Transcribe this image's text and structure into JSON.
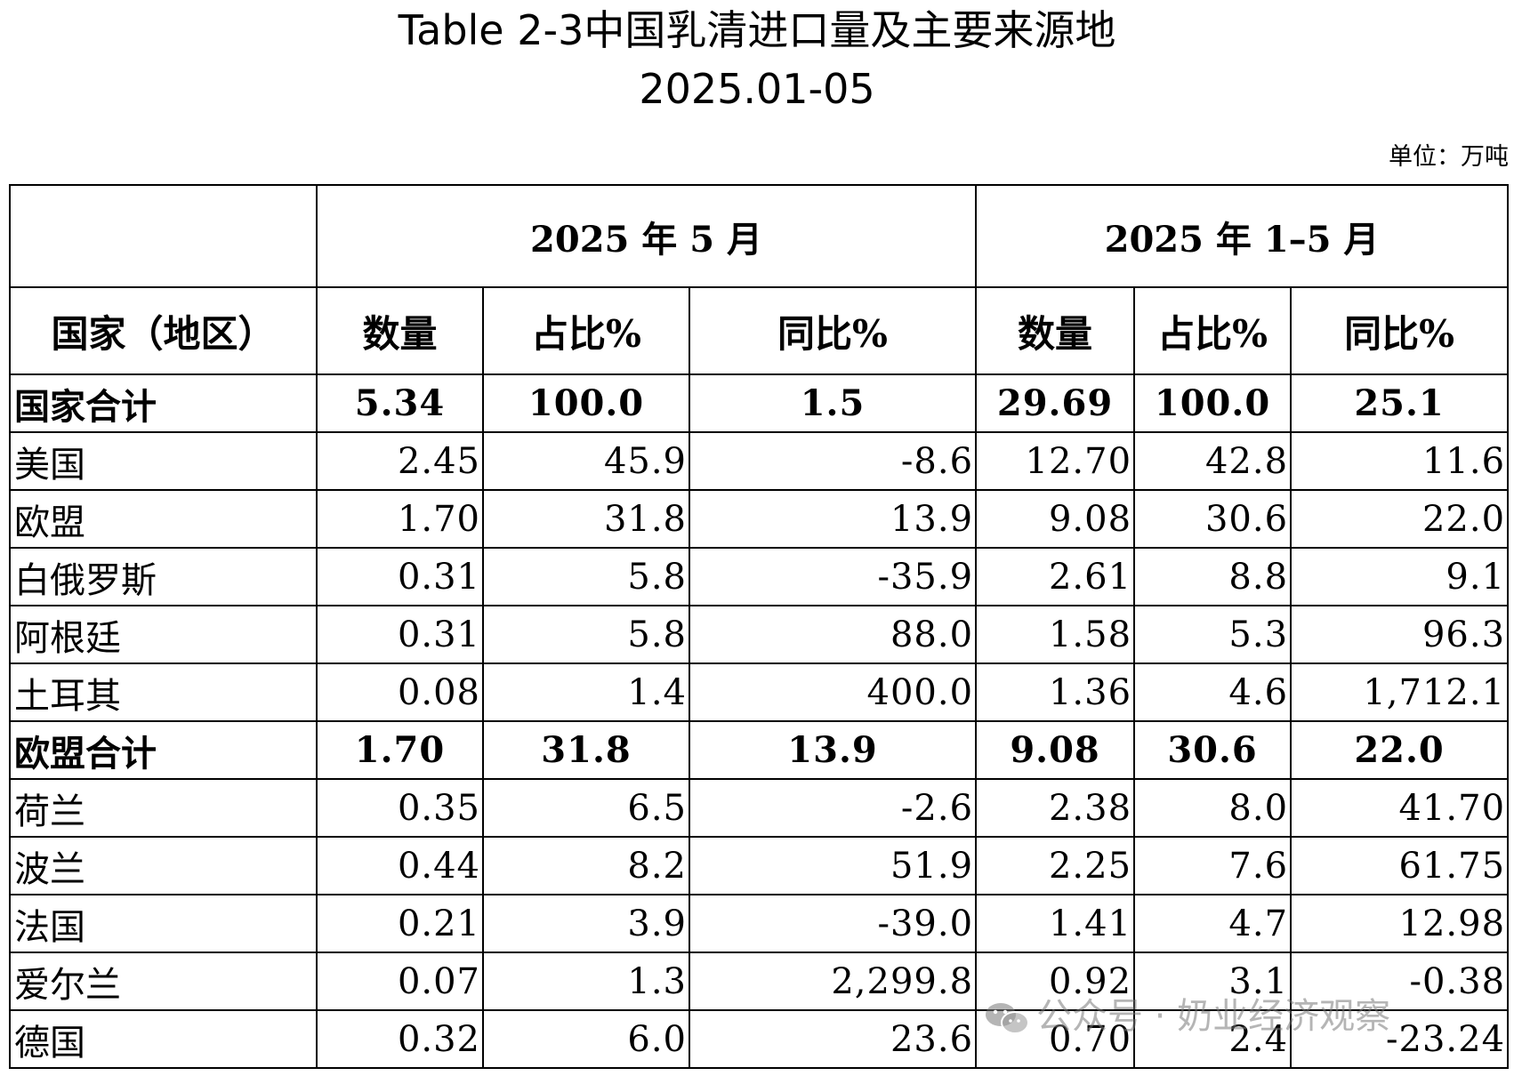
{
  "title": "Table 2-3中国乳清进口量及主要来源地",
  "subtitle": "2025.01-05",
  "unit": "单位：万吨",
  "header": {
    "group1": "2025 年 5 月",
    "group2": "2025 年 1–5 月",
    "country": "国家（地区）",
    "cols": [
      "数量",
      "占比%",
      "同比%",
      "数量",
      "占比%",
      "同比%"
    ]
  },
  "rows": [
    {
      "name": "国家合计",
      "bold": true,
      "v": [
        "5.34",
        "100.0",
        "1.5",
        "29.69",
        "100.0",
        "25.1"
      ]
    },
    {
      "name": "美国",
      "bold": false,
      "v": [
        "2.45",
        "45.9",
        "-8.6",
        "12.70",
        "42.8",
        "11.6"
      ]
    },
    {
      "name": "欧盟",
      "bold": false,
      "v": [
        "1.70",
        "31.8",
        "13.9",
        "9.08",
        "30.6",
        "22.0"
      ]
    },
    {
      "name": "白俄罗斯",
      "bold": false,
      "v": [
        "0.31",
        "5.8",
        "-35.9",
        "2.61",
        "8.8",
        "9.1"
      ]
    },
    {
      "name": "阿根廷",
      "bold": false,
      "v": [
        "0.31",
        "5.8",
        "88.0",
        "1.58",
        "5.3",
        "96.3"
      ]
    },
    {
      "name": "土耳其",
      "bold": false,
      "v": [
        "0.08",
        "1.4",
        "400.0",
        "1.36",
        "4.6",
        "1,712.1"
      ]
    },
    {
      "name": "欧盟合计",
      "bold": true,
      "v": [
        "1.70",
        "31.8",
        "13.9",
        "9.08",
        "30.6",
        "22.0"
      ]
    },
    {
      "name": "荷兰",
      "bold": false,
      "v": [
        "0.35",
        "6.5",
        "-2.6",
        "2.38",
        "8.0",
        "41.70"
      ]
    },
    {
      "name": "波兰",
      "bold": false,
      "v": [
        "0.44",
        "8.2",
        "51.9",
        "2.25",
        "7.6",
        "61.75"
      ]
    },
    {
      "name": "法国",
      "bold": false,
      "v": [
        "0.21",
        "3.9",
        "-39.0",
        "1.41",
        "4.7",
        "12.98"
      ]
    },
    {
      "name": "爱尔兰",
      "bold": false,
      "v": [
        "0.07",
        "1.3",
        "2,299.8",
        "0.92",
        "3.1",
        "-0.38"
      ]
    },
    {
      "name": "德国",
      "bold": false,
      "v": [
        "0.32",
        "6.0",
        "23.6",
        "0.70",
        "2.4",
        "-23.24"
      ]
    }
  ],
  "watermark": {
    "icon": "wechat-icon",
    "text": "公众号 · 奶业经济观察"
  }
}
